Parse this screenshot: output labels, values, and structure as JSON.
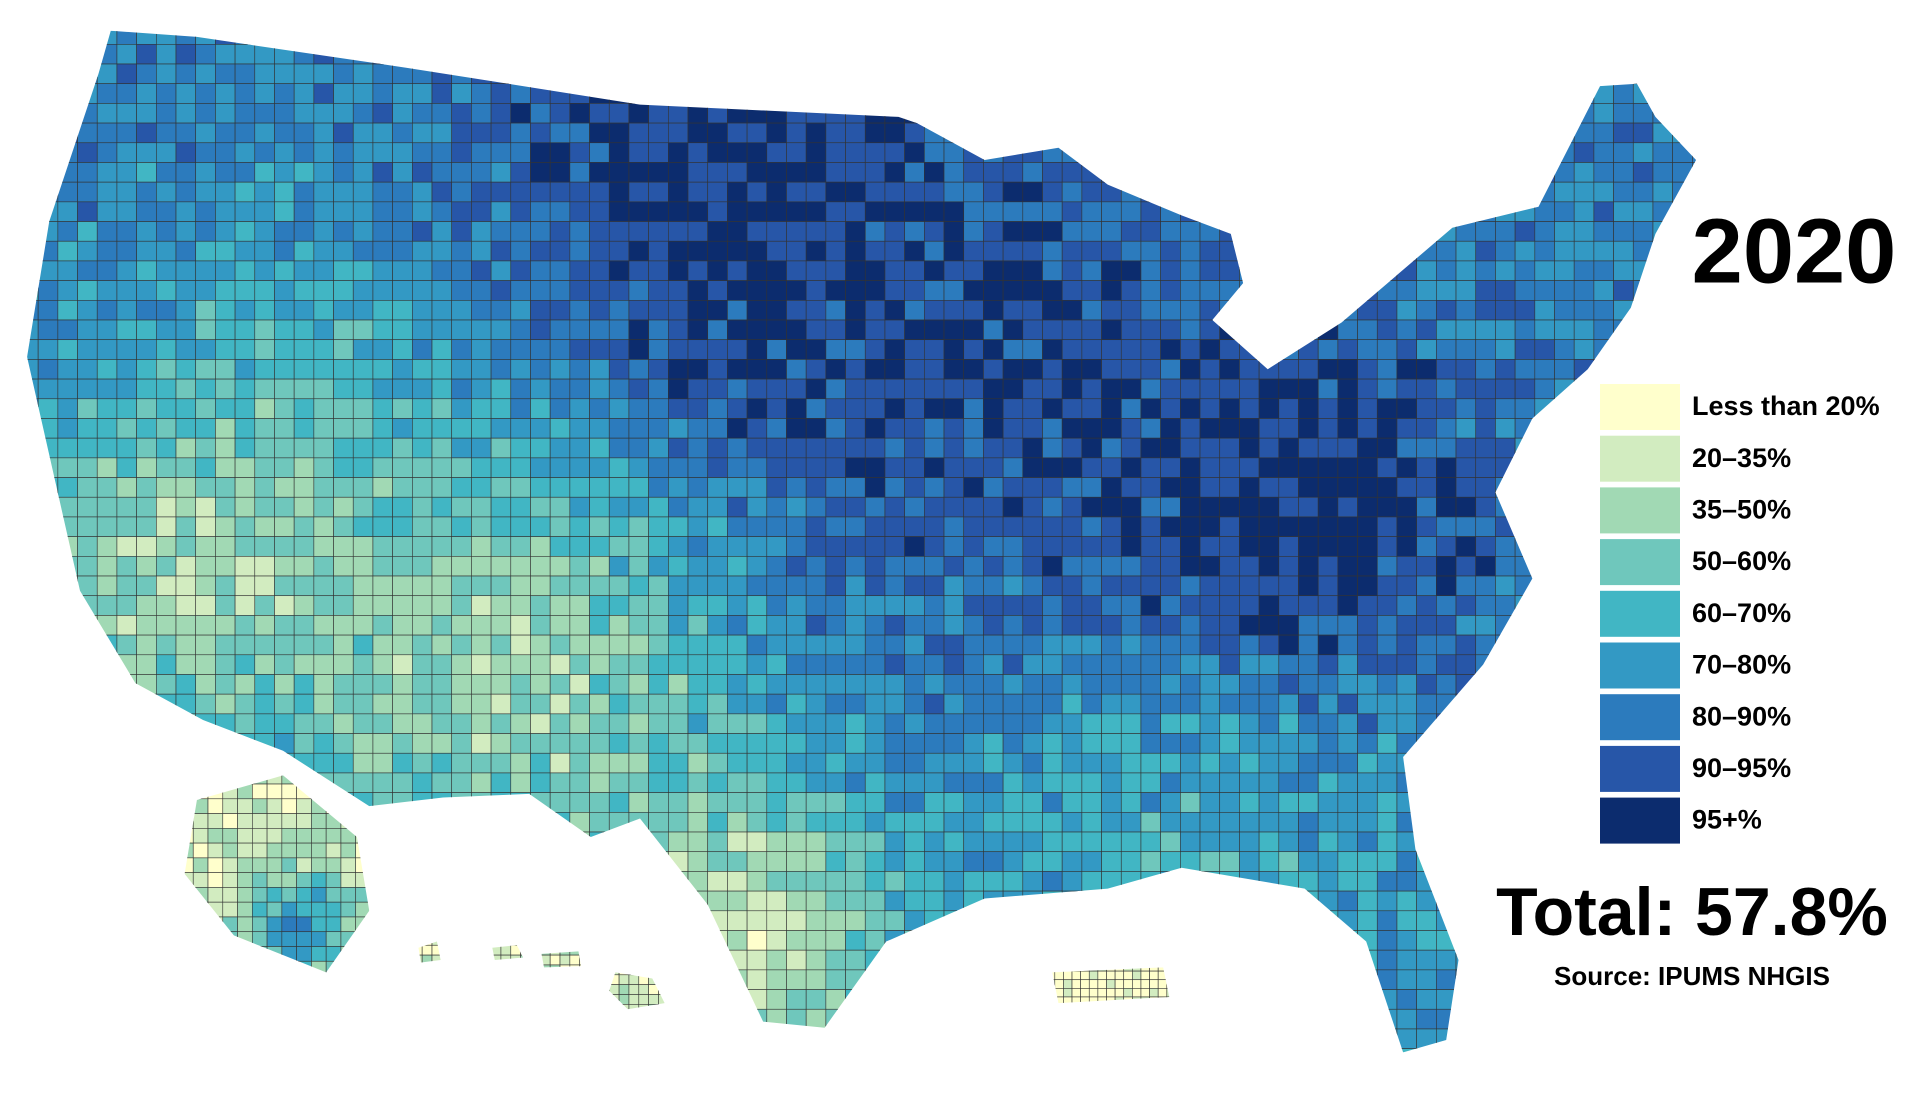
{
  "title": "2020",
  "legend": {
    "items": [
      {
        "label": "Less than 20%",
        "color": "#ffffcc"
      },
      {
        "label": "20–35%",
        "color": "#d2ecc0"
      },
      {
        "label": "35–50%",
        "color": "#a1d9b4"
      },
      {
        "label": "50–60%",
        "color": "#6fc7bc"
      },
      {
        "label": "60–70%",
        "color": "#41b6c4"
      },
      {
        "label": "70–80%",
        "color": "#3399c4"
      },
      {
        "label": "80–90%",
        "color": "#2c7bbd"
      },
      {
        "label": "90–95%",
        "color": "#2756a8"
      },
      {
        "label": "95+%",
        "color": "#0c2c6e"
      }
    ]
  },
  "total": "Total: 57.8%",
  "source": "Source: IPUMS NHGIS"
}
